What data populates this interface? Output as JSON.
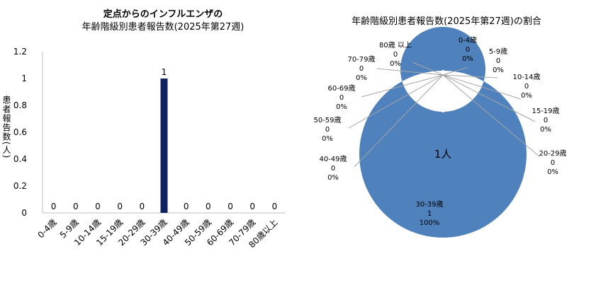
{
  "bar_title_line1": "定点からのインフルエンザの",
  "bar_title_line2": "年齢階級別患者報告数(2025年第27週)",
  "donut_title": "年齢階級別患者報告数(2025年第27週)の割合",
  "center_label": "1人",
  "colors": {
    "bar": "#0f2260",
    "donut": "#4f81bd",
    "axis": "#bfbfbf",
    "leader": "#a6a6a6"
  },
  "chart_data": [
    {
      "type": "bar",
      "title": "定点からのインフルエンザの 年齢階級別患者報告数(2025年第27週)",
      "ylabel": "患者報告数(人)",
      "xlabel": "",
      "categories": [
        "0-4歳",
        "5-9歳",
        "10-14歳",
        "15-19歳",
        "20-29歳",
        "30-39歳",
        "40-49歳",
        "50-59歳",
        "60-69歳",
        "70-79歳",
        "80歳以上"
      ],
      "values": [
        0,
        0,
        0,
        0,
        0,
        1,
        0,
        0,
        0,
        0,
        0
      ],
      "ylim": [
        0,
        1.2
      ],
      "yticks": [
        "0",
        "0.2",
        "0.4",
        "0.6",
        "0.8",
        "1",
        "1.2"
      ],
      "grid": false
    },
    {
      "type": "pie",
      "style": "donut",
      "title": "年齢階級別患者報告数(2025年第27週)の割合",
      "categories": [
        "0-4歳",
        "5-9歳",
        "10-14歳",
        "15-19歳",
        "20-29歳",
        "30-39歳",
        "40-49歳",
        "50-59歳",
        "60-69歳",
        "70-79歳",
        "80歳 以上"
      ],
      "values": [
        0,
        0,
        0,
        0,
        0,
        1,
        0,
        0,
        0,
        0,
        0
      ],
      "percents": [
        "0%",
        "0%",
        "0%",
        "0%",
        "0%",
        "100%",
        "0%",
        "0%",
        "0%",
        "0%",
        "0%"
      ]
    }
  ]
}
